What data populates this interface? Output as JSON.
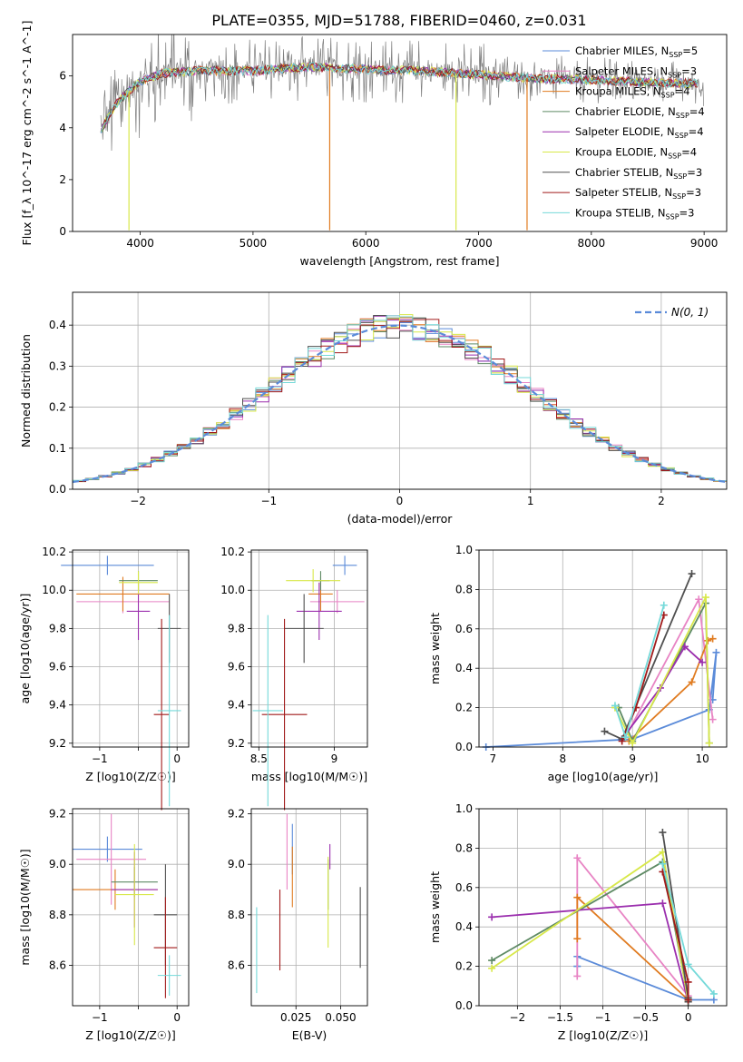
{
  "title": "PLATE=0355, MJD=51788, FIBERID=0460, z=0.031",
  "colors": {
    "Chabrier MILES": "#5b8bd9",
    "Salpeter MILES": "#e884c4",
    "Kroupa MILES": "#e07b20",
    "Chabrier ELODIE": "#5e8a64",
    "Salpeter ELODIE": "#9b2fae",
    "Kroupa ELODIE": "#d8e84a",
    "Chabrier STELIB": "#505050",
    "Salpeter STELIB": "#a11a1a",
    "Kroupa STELIB": "#74d9d9"
  },
  "legend_main": [
    {
      "name": "Chabrier MILES",
      "nssp": "5"
    },
    {
      "name": "Salpeter MILES",
      "nssp": "3"
    },
    {
      "name": "Kroupa MILES",
      "nssp": "4"
    },
    {
      "name": "Chabrier ELODIE",
      "nssp": "4"
    },
    {
      "name": "Salpeter ELODIE",
      "nssp": "4"
    },
    {
      "name": "Kroupa ELODIE",
      "nssp": "4"
    },
    {
      "name": "Chabrier STELIB",
      "nssp": "3"
    },
    {
      "name": "Salpeter STELIB",
      "nssp": "3"
    },
    {
      "name": "Kroupa STELIB",
      "nssp": "3"
    }
  ],
  "legend_hist": "N(0, 1)",
  "chart_data": [
    {
      "type": "line",
      "panel": "spectrum",
      "xlabel": "wavelength [Angstrom, rest frame]",
      "ylabel": "Flux [f_λ 10^-17 erg cm^-2 s^-1 A^-1]",
      "xlim": [
        3400,
        9200
      ],
      "ylim": [
        0,
        7.6
      ],
      "xticks": [
        4000,
        5000,
        6000,
        7000,
        8000,
        9000
      ],
      "yticks": [
        0,
        2,
        4,
        6
      ],
      "grid": false,
      "legend": "top-right",
      "continuum": {
        "x": [
          3650,
          3700,
          3800,
          3900,
          4000,
          4200,
          4500,
          5000,
          5500,
          6000,
          6500,
          7000,
          7500,
          8000,
          8500,
          9000
        ],
        "y": [
          3.8,
          4.3,
          5.0,
          5.4,
          5.8,
          6.1,
          6.2,
          6.2,
          6.35,
          6.25,
          6.2,
          6.05,
          5.9,
          5.85,
          5.75,
          5.7
        ]
      }
    },
    {
      "type": "bar",
      "panel": "residual-histogram",
      "xlabel": "(data-model)/error",
      "ylabel": "Normed distribution",
      "xlim": [
        -2.5,
        2.5
      ],
      "ylim": [
        0,
        0.48
      ],
      "xticks": [
        -2,
        -1,
        0,
        1,
        2
      ],
      "yticks": [
        0.0,
        0.1,
        0.2,
        0.3,
        0.4
      ],
      "grid": true,
      "legend": "top-right",
      "bin_width": 0.1
    },
    {
      "type": "scatter",
      "panel": "age-vs-Z",
      "xlabel": "Z [log10(Z/Z☉)]",
      "ylabel": "age [log10(age/yr)]",
      "xlim": [
        -1.35,
        0.15
      ],
      "ylim": [
        9.18,
        10.21
      ],
      "xticks": [
        -1,
        -0.5,
        0
      ],
      "xticklabels": [
        "−1",
        "",
        "0"
      ],
      "yticks": [
        9.2,
        9.4,
        9.6,
        9.8,
        10.0,
        10.2
      ],
      "grid": true,
      "points": [
        {
          "model": "Chabrier MILES",
          "x": -0.9,
          "xerr": 0.6,
          "y": 10.13,
          "yerr": 0.05
        },
        {
          "model": "Salpeter MILES",
          "x": -0.7,
          "xerr": 0.6,
          "y": 9.94,
          "yerr": 0.06
        },
        {
          "model": "Kroupa MILES",
          "x": -0.7,
          "xerr": 0.6,
          "y": 9.98,
          "yerr": 0.09
        },
        {
          "model": "Chabrier ELODIE",
          "x": -0.5,
          "xerr": 0.25,
          "y": 10.05,
          "yerr": 0.05
        },
        {
          "model": "Salpeter ELODIE",
          "x": -0.5,
          "xerr": 0.15,
          "y": 9.89,
          "yerr": 0.15
        },
        {
          "model": "Kroupa ELODIE",
          "x": -0.5,
          "xerr": 0.25,
          "y": 10.04,
          "yerr": 0.06
        },
        {
          "model": "Chabrier STELIB",
          "x": -0.1,
          "xerr": 0.15,
          "y": 9.8,
          "yerr": 0.18
        },
        {
          "model": "Salpeter STELIB",
          "x": -0.2,
          "xerr": 0.1,
          "y": 9.35,
          "yerr": 0.5
        },
        {
          "model": "Kroupa STELIB",
          "x": -0.1,
          "xerr": 0.15,
          "y": 9.37,
          "yerr": 0.5
        }
      ]
    },
    {
      "type": "scatter",
      "panel": "age-vs-mass",
      "xlabel": "mass [log10(M/M☉)]",
      "ylabel": "",
      "xlim": [
        8.45,
        9.22
      ],
      "ylim": [
        9.18,
        10.21
      ],
      "xticks": [
        8.5,
        9.0
      ],
      "yticks": [
        9.2,
        9.4,
        9.6,
        9.8,
        10.0,
        10.2
      ],
      "grid": true,
      "points": [
        {
          "model": "Chabrier MILES",
          "x": 9.07,
          "xerr": 0.08,
          "y": 10.13,
          "yerr": 0.05
        },
        {
          "model": "Salpeter MILES",
          "x": 9.02,
          "xerr": 0.18,
          "y": 9.94,
          "yerr": 0.06
        },
        {
          "model": "Kroupa MILES",
          "x": 8.91,
          "xerr": 0.08,
          "y": 9.98,
          "yerr": 0.09
        },
        {
          "model": "Chabrier ELODIE",
          "x": 8.91,
          "xerr": 0.06,
          "y": 10.05,
          "yerr": 0.05
        },
        {
          "model": "Salpeter ELODIE",
          "x": 8.9,
          "xerr": 0.15,
          "y": 9.89,
          "yerr": 0.15
        },
        {
          "model": "Kroupa ELODIE",
          "x": 8.86,
          "xerr": 0.18,
          "y": 10.05,
          "yerr": 0.06
        },
        {
          "model": "Chabrier STELIB",
          "x": 8.8,
          "xerr": 0.13,
          "y": 9.8,
          "yerr": 0.18
        },
        {
          "model": "Salpeter STELIB",
          "x": 8.67,
          "xerr": 0.15,
          "y": 9.35,
          "yerr": 0.5
        },
        {
          "model": "Kroupa STELIB",
          "x": 8.56,
          "xerr": 0.1,
          "y": 9.37,
          "yerr": 0.5
        }
      ]
    },
    {
      "type": "line",
      "panel": "mass-weight-vs-age",
      "xlabel": "age [log10(age/yr)]",
      "ylabel": "mass weight",
      "xlim": [
        6.8,
        10.35
      ],
      "ylim": [
        0,
        1.0
      ],
      "xticks": [
        7,
        8,
        9,
        10
      ],
      "yticks": [
        0.0,
        0.2,
        0.4,
        0.6,
        0.8,
        1.0
      ],
      "grid": true,
      "series": [
        {
          "model": "Chabrier MILES",
          "x": [
            6.9,
            9.0,
            10.1,
            10.2,
            10.15
          ],
          "y": [
            0.0,
            0.04,
            0.19,
            0.48,
            0.24
          ]
        },
        {
          "model": "Salpeter MILES",
          "x": [
            8.9,
            9.95,
            10.15
          ],
          "y": [
            0.05,
            0.75,
            0.14
          ]
        },
        {
          "model": "Kroupa MILES",
          "x": [
            8.95,
            9.85,
            10.08,
            10.15
          ],
          "y": [
            0.03,
            0.33,
            0.54,
            0.55
          ]
        },
        {
          "model": "Chabrier ELODIE",
          "x": [
            8.8,
            9.0,
            10.05,
            10.1
          ],
          "y": [
            0.2,
            0.03,
            0.73,
            0.02
          ]
        },
        {
          "model": "Salpeter ELODIE",
          "x": [
            8.85,
            9.4,
            9.75,
            10.0
          ],
          "y": [
            0.04,
            0.3,
            0.51,
            0.43
          ]
        },
        {
          "model": "Kroupa ELODIE",
          "x": [
            8.75,
            9.0,
            10.05,
            10.1
          ],
          "y": [
            0.2,
            0.02,
            0.76,
            0.02
          ]
        },
        {
          "model": "Chabrier STELIB",
          "x": [
            8.6,
            8.85,
            9.85
          ],
          "y": [
            0.08,
            0.04,
            0.88
          ]
        },
        {
          "model": "Salpeter STELIB",
          "x": [
            8.85,
            9.05,
            9.45
          ],
          "y": [
            0.03,
            0.2,
            0.67
          ]
        },
        {
          "model": "Kroupa STELIB",
          "x": [
            8.75,
            8.9,
            9.45
          ],
          "y": [
            0.21,
            0.05,
            0.72
          ]
        }
      ]
    },
    {
      "type": "scatter",
      "panel": "mass-vs-Z",
      "xlabel": "Z [log10(Z/Z☉)]",
      "ylabel": "mass [log10(M/M☉)]",
      "xlim": [
        -1.35,
        0.15
      ],
      "ylim": [
        8.44,
        9.22
      ],
      "xticks": [
        -1,
        -0.5,
        0
      ],
      "xticklabels": [
        "−1",
        "",
        "0"
      ],
      "yticks": [
        8.6,
        8.8,
        9.0,
        9.2
      ],
      "grid": true,
      "points": [
        {
          "model": "Chabrier MILES",
          "x": -0.9,
          "xerr": 0.45,
          "y": 9.06,
          "yerr": 0.05
        },
        {
          "model": "Salpeter MILES",
          "x": -0.85,
          "xerr": 0.45,
          "y": 9.02,
          "yerr": 0.18
        },
        {
          "model": "Kroupa MILES",
          "x": -0.8,
          "xerr": 0.55,
          "y": 8.9,
          "yerr": 0.08
        },
        {
          "model": "Chabrier ELODIE",
          "x": -0.55,
          "xerr": 0.3,
          "y": 8.93,
          "yerr": 0.06
        },
        {
          "model": "Salpeter ELODIE",
          "x": -0.55,
          "xerr": 0.3,
          "y": 8.9,
          "yerr": 0.15
        },
        {
          "model": "Kroupa ELODIE",
          "x": -0.55,
          "xerr": 0.25,
          "y": 8.88,
          "yerr": 0.2
        },
        {
          "model": "Chabrier STELIB",
          "x": -0.15,
          "xerr": 0.15,
          "y": 8.8,
          "yerr": 0.2
        },
        {
          "model": "Salpeter STELIB",
          "x": -0.15,
          "xerr": 0.15,
          "y": 8.67,
          "yerr": 0.2
        },
        {
          "model": "Kroupa STELIB",
          "x": -0.1,
          "xerr": 0.15,
          "y": 8.56,
          "yerr": 0.08
        }
      ]
    },
    {
      "type": "scatter",
      "panel": "mass-vs-EBV",
      "xlabel": "E(B-V)",
      "ylabel": "",
      "xlim": [
        0.0,
        0.065
      ],
      "ylim": [
        8.44,
        9.22
      ],
      "xticks": [
        0.025,
        0.05
      ],
      "xticklabels": [
        "0.025",
        "0.050"
      ],
      "yticks": [
        8.6,
        8.8,
        9.0,
        9.2
      ],
      "grid": true,
      "points": [
        {
          "model": "Chabrier MILES",
          "x": 0.023,
          "y": 9.06,
          "yerr": 0.1
        },
        {
          "model": "Salpeter MILES",
          "x": 0.02,
          "y": 9.05,
          "yerr": 0.15
        },
        {
          "model": "Kroupa MILES",
          "x": 0.023,
          "y": 8.95,
          "yerr": 0.12
        },
        {
          "model": "Chabrier ELODIE",
          "x": 0.043,
          "y": 8.92,
          "yerr": 0.1
        },
        {
          "model": "Salpeter ELODIE",
          "x": 0.044,
          "y": 9.03,
          "yerr": 0.05
        },
        {
          "model": "Kroupa ELODIE",
          "x": 0.043,
          "y": 8.85,
          "yerr": 0.18
        },
        {
          "model": "Chabrier STELIB",
          "x": 0.061,
          "y": 8.75,
          "yerr": 0.16
        },
        {
          "model": "Salpeter STELIB",
          "x": 0.016,
          "y": 8.74,
          "yerr": 0.16
        },
        {
          "model": "Kroupa STELIB",
          "x": 0.003,
          "y": 8.66,
          "yerr": 0.17
        }
      ]
    },
    {
      "type": "line",
      "panel": "mass-weight-vs-Z",
      "xlabel": "Z [log10(Z/Z☉)]",
      "ylabel": "mass weight",
      "xlim": [
        -2.45,
        0.45
      ],
      "ylim": [
        0,
        1.0
      ],
      "xticks": [
        -2.0,
        -1.5,
        -1.0,
        -0.5,
        0.0
      ],
      "yticks": [
        0.0,
        0.2,
        0.4,
        0.6,
        0.8,
        1.0
      ],
      "grid": true,
      "series": [
        {
          "model": "Chabrier MILES",
          "x": [
            -1.3,
            -1.3,
            0.0,
            0.3
          ],
          "y": [
            0.2,
            0.25,
            0.03,
            0.03
          ]
        },
        {
          "model": "Salpeter MILES",
          "x": [
            -1.3,
            -1.3,
            0.0
          ],
          "y": [
            0.15,
            0.75,
            0.05
          ]
        },
        {
          "model": "Kroupa MILES",
          "x": [
            -1.3,
            -1.3,
            0.0
          ],
          "y": [
            0.34,
            0.55,
            0.03
          ]
        },
        {
          "model": "Chabrier ELODIE",
          "x": [
            -2.3,
            -0.3,
            0.0
          ],
          "y": [
            0.23,
            0.73,
            0.03
          ]
        },
        {
          "model": "Salpeter ELODIE",
          "x": [
            -2.3,
            -0.3,
            0.0
          ],
          "y": [
            0.45,
            0.52,
            0.02
          ]
        },
        {
          "model": "Kroupa ELODIE",
          "x": [
            -2.3,
            -0.3,
            0.0
          ],
          "y": [
            0.19,
            0.78,
            0.02
          ]
        },
        {
          "model": "Chabrier STELIB",
          "x": [
            -0.3,
            0.0,
            0.0
          ],
          "y": [
            0.88,
            0.04,
            0.02
          ]
        },
        {
          "model": "Salpeter STELIB",
          "x": [
            -0.3,
            0.0,
            0.0
          ],
          "y": [
            0.68,
            0.12,
            0.03
          ]
        },
        {
          "model": "Kroupa STELIB",
          "x": [
            -0.3,
            0.0,
            0.3
          ],
          "y": [
            0.72,
            0.21,
            0.06
          ]
        }
      ]
    }
  ]
}
